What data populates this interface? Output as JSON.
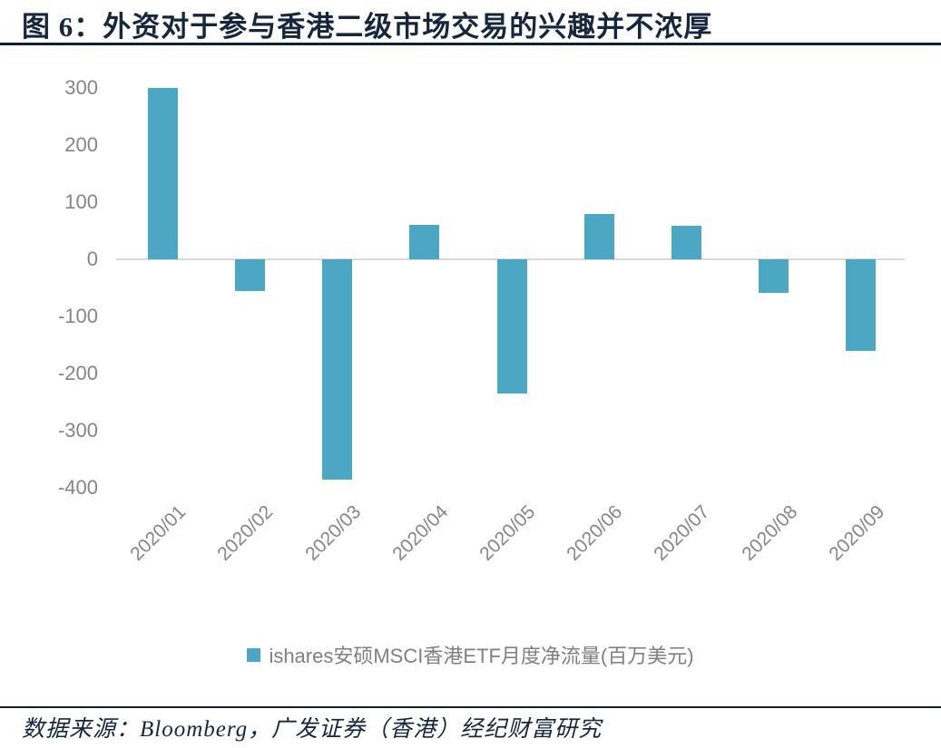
{
  "title": "图 6：外资对于参与香港二级市场交易的兴趣并不浓厚",
  "source": "数据来源：Bloomberg，广发证券（香港）经纪财富研究",
  "chart_data": {
    "type": "bar",
    "title": "图 6：外资对于参与香港二级市场交易的兴趣并不浓厚",
    "categories": [
      "2020/01",
      "2020/02",
      "2020/03",
      "2020/04",
      "2020/05",
      "2020/06",
      "2020/07",
      "2020/08",
      "2020/09"
    ],
    "values": [
      300,
      -55,
      -385,
      60,
      -235,
      80,
      58,
      -58,
      -160
    ],
    "legend": "ishares安硕MSCI香港ETF月度净流量(百万美元)",
    "xlabel": "",
    "ylabel": "",
    "ylim": [
      -400,
      300
    ],
    "yticks": [
      300,
      200,
      100,
      0,
      -100,
      -200,
      -300,
      -400
    ],
    "grid": "zero-line-only",
    "legend_position": "bottom-center",
    "bar_color": "#4BA7C3"
  },
  "colors": {
    "accent_navy": "#16263F",
    "axis_text": "#858585",
    "zero_line": "#D9D9D9",
    "legend_text": "#7F7F7F",
    "bar_teal": "#4BA7C3"
  }
}
